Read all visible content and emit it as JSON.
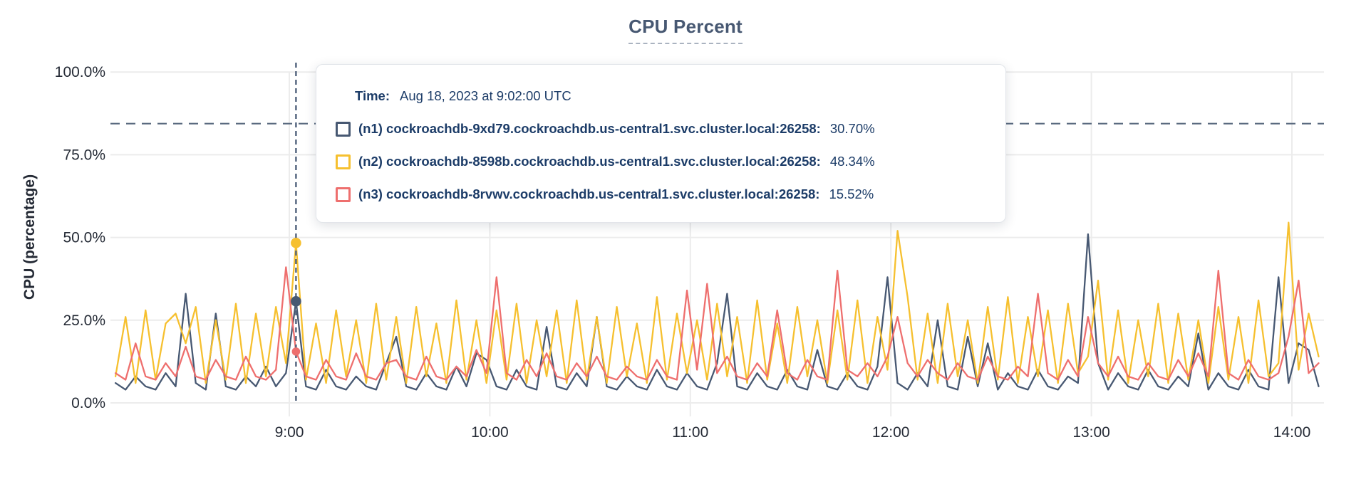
{
  "header": {
    "title": "CPU Percent"
  },
  "colors": {
    "title": "#475872",
    "grid": "#ececec",
    "axis_text": "#242a35",
    "tooltip_text": "#1c3c68",
    "threshold_dash": "#5b6b80",
    "hover_dash": "#51627c",
    "n1": "#475872",
    "n2": "#f6c02f",
    "n3": "#ee6f6e"
  },
  "tooltip": {
    "time_label": "Time:",
    "time_value": "Aug 18, 2023 at 9:02:00 UTC",
    "rows": [
      {
        "label": "(n1) cockroachdb-9xd79.cockroachdb.us-central1.svc.cluster.local:26258:",
        "value": "30.70%",
        "color": "#475872"
      },
      {
        "label": "(n2) cockroachdb-8598b.cockroachdb.us-central1.svc.cluster.local:26258:",
        "value": "48.34%",
        "color": "#f6c02f"
      },
      {
        "label": "(n3) cockroachdb-8rvwv.cockroachdb.us-central1.svc.cluster.local:26258:",
        "value": "15.52%",
        "color": "#ee6f6e"
      }
    ]
  },
  "chart_data": {
    "type": "line",
    "title": "CPU Percent",
    "ylabel": "CPU (percentage)",
    "ylim": [
      0,
      100
    ],
    "grid": true,
    "y_ticks_percent": [
      0,
      25,
      50,
      75,
      100
    ],
    "y_tick_labels": [
      "0.0%",
      "25.0%",
      "50.0%",
      "75.0%",
      "100.0%"
    ],
    "x_ticks_minutes": [
      540,
      600,
      660,
      720,
      780,
      840
    ],
    "x_tick_labels": [
      "9:00",
      "10:00",
      "11:00",
      "12:00",
      "13:00",
      "14:00"
    ],
    "x_start_minutes": 488,
    "x_step_minutes": 3,
    "threshold_line_percent": 84.4,
    "hover": {
      "time_minutes": 542,
      "time_text": "Aug 18, 2023 at 9:02:00 UTC",
      "values_percent": [
        30.7,
        48.34,
        15.52
      ]
    },
    "series": [
      {
        "name": "(n1) cockroachdb-9xd79.cockroachdb.us-central1.svc.cluster.local:26258",
        "color": "#475872",
        "values": [
          6,
          4,
          8,
          5,
          4,
          9,
          5,
          33,
          6,
          4,
          27,
          5,
          4,
          8,
          5,
          11,
          5,
          9,
          30.7,
          5,
          4,
          10,
          5,
          4,
          8,
          5,
          4,
          12,
          20,
          5,
          4,
          9,
          5,
          4,
          11,
          5,
          15,
          13,
          5,
          4,
          10,
          5,
          4,
          23,
          5,
          4,
          9,
          5,
          26,
          5,
          4,
          8,
          5,
          4,
          10,
          5,
          4,
          9,
          5,
          4,
          12,
          33,
          5,
          4,
          9,
          5,
          4,
          10,
          5,
          4,
          16,
          5,
          4,
          9,
          5,
          4,
          11,
          38,
          6,
          4,
          9,
          5,
          25,
          5,
          4,
          20,
          5,
          18,
          4,
          9,
          5,
          4,
          10,
          5,
          4,
          8,
          6,
          51,
          12,
          4,
          9,
          5,
          4,
          10,
          5,
          4,
          8,
          5,
          21,
          4,
          9,
          5,
          4,
          10,
          5,
          4,
          38,
          6,
          18,
          16,
          5
        ]
      },
      {
        "name": "(n2) cockroachdb-8598b.cockroachdb.us-central1.svc.cluster.local:26258",
        "color": "#f6c02f",
        "values": [
          8,
          26,
          6,
          28,
          7,
          24,
          27,
          18,
          29,
          6,
          25,
          7,
          30,
          6,
          27,
          8,
          29,
          12,
          48.34,
          7,
          24,
          6,
          28,
          8,
          25,
          6,
          30,
          7,
          26,
          6,
          29,
          8,
          24,
          6,
          31,
          7,
          25,
          6,
          28,
          7,
          30,
          6,
          25,
          8,
          28,
          6,
          31,
          7,
          26,
          6,
          29,
          8,
          24,
          6,
          32,
          7,
          27,
          9,
          25,
          7,
          30,
          8,
          26,
          6,
          31,
          7,
          24,
          6,
          29,
          8,
          25,
          6,
          28,
          7,
          31,
          6,
          26,
          10,
          52,
          32,
          7,
          27,
          6,
          30,
          8,
          25,
          6,
          29,
          7,
          32,
          6,
          26,
          8,
          28,
          6,
          30,
          9,
          14,
          37,
          7,
          28,
          6,
          25,
          8,
          30,
          6,
          27,
          7,
          25,
          6,
          29,
          7,
          26,
          6,
          31,
          8,
          12,
          54.5,
          10,
          27,
          14
        ]
      },
      {
        "name": "(n3) cockroachdb-8rvwv.cockroachdb.us-central1.svc.cluster.local:26258",
        "color": "#ee6f6e",
        "values": [
          9,
          7,
          18,
          8,
          7,
          12,
          8,
          17,
          8,
          7,
          13,
          8,
          7,
          14,
          8,
          7,
          10,
          41,
          15.52,
          8,
          7,
          13,
          8,
          7,
          15,
          8,
          7,
          12,
          13,
          8,
          7,
          14,
          8,
          7,
          11,
          8,
          16,
          9,
          38,
          9,
          7,
          13,
          8,
          15,
          8,
          7,
          12,
          8,
          14,
          8,
          7,
          11,
          8,
          7,
          13,
          8,
          7,
          34,
          10,
          36,
          9,
          14,
          8,
          7,
          12,
          8,
          28,
          9,
          7,
          13,
          8,
          7,
          40,
          10,
          8,
          12,
          8,
          14,
          26,
          12,
          8,
          13,
          9,
          7,
          12,
          8,
          7,
          14,
          8,
          7,
          11,
          8,
          33,
          9,
          7,
          13,
          8,
          26,
          12,
          8,
          14,
          8,
          7,
          12,
          8,
          7,
          13,
          8,
          15,
          8,
          40,
          9,
          7,
          13,
          8,
          7,
          9,
          20,
          37,
          9,
          12
        ]
      }
    ]
  }
}
